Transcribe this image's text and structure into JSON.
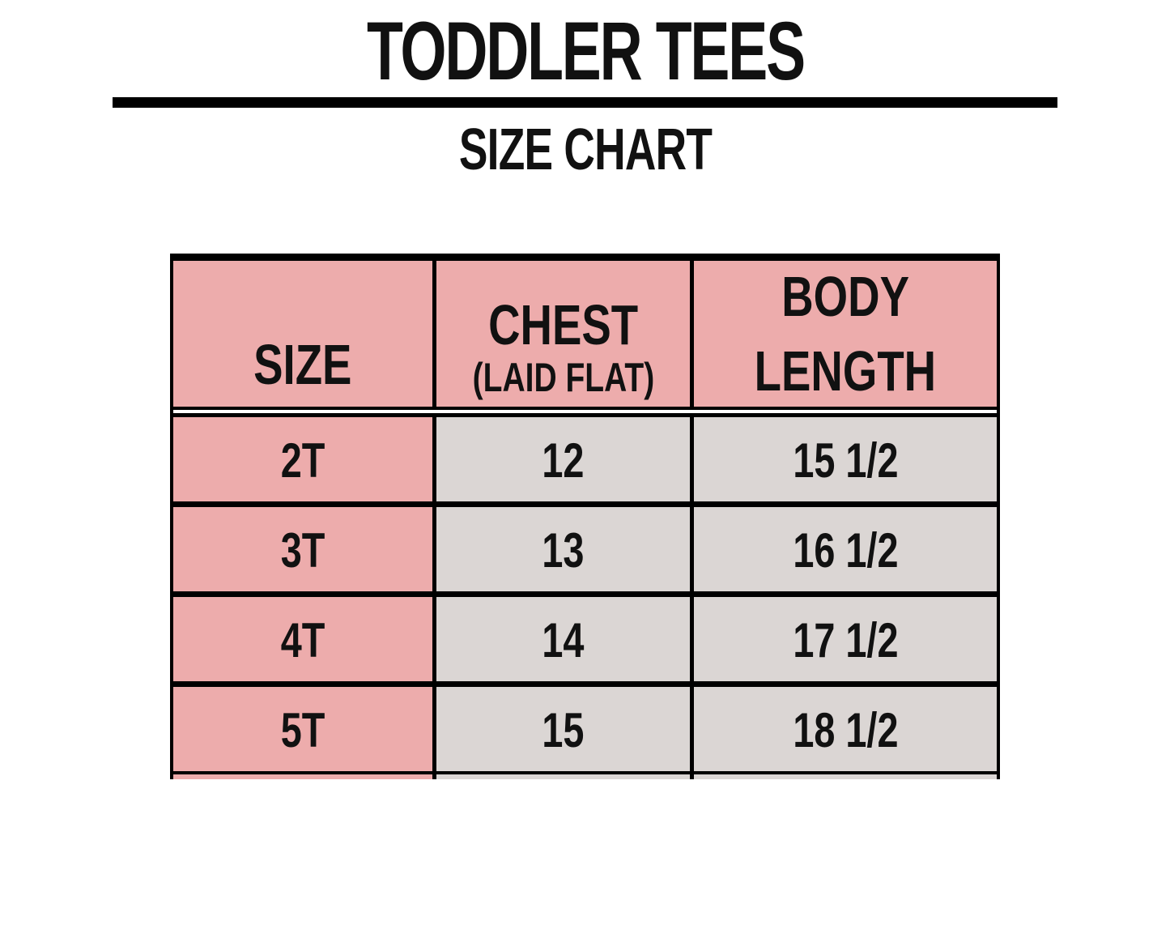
{
  "page": {
    "title": "TODDLER TEES",
    "subtitle": "SIZE CHART"
  },
  "table": {
    "header": {
      "size": "SIZE",
      "chest": "CHEST",
      "chest_sub": "(LAID FLAT)",
      "body_line1": "BODY",
      "body_line2": "LENGTH"
    },
    "rows": [
      {
        "size": "2T",
        "chest": "12",
        "body_length": "15 1/2"
      },
      {
        "size": "3T",
        "chest": "13",
        "body_length": "16 1/2"
      },
      {
        "size": "4T",
        "chest": "14",
        "body_length": "17 1/2"
      },
      {
        "size": "5T",
        "chest": "15",
        "body_length": "18 1/2"
      }
    ]
  },
  "colors": {
    "header_pink": "#edacac",
    "cell_gray": "#dbd6d4",
    "border_black": "#000000",
    "background": "#ffffff"
  },
  "chart_data": {
    "type": "table",
    "title": "TODDLER TEES",
    "subtitle": "SIZE CHART",
    "columns": [
      "SIZE",
      "CHEST (LAID FLAT)",
      "BODY LENGTH"
    ],
    "rows": [
      [
        "2T",
        "12",
        "15 1/2"
      ],
      [
        "3T",
        "13",
        "16 1/2"
      ],
      [
        "4T",
        "14",
        "17 1/2"
      ],
      [
        "5T",
        "15",
        "18 1/2"
      ]
    ]
  }
}
